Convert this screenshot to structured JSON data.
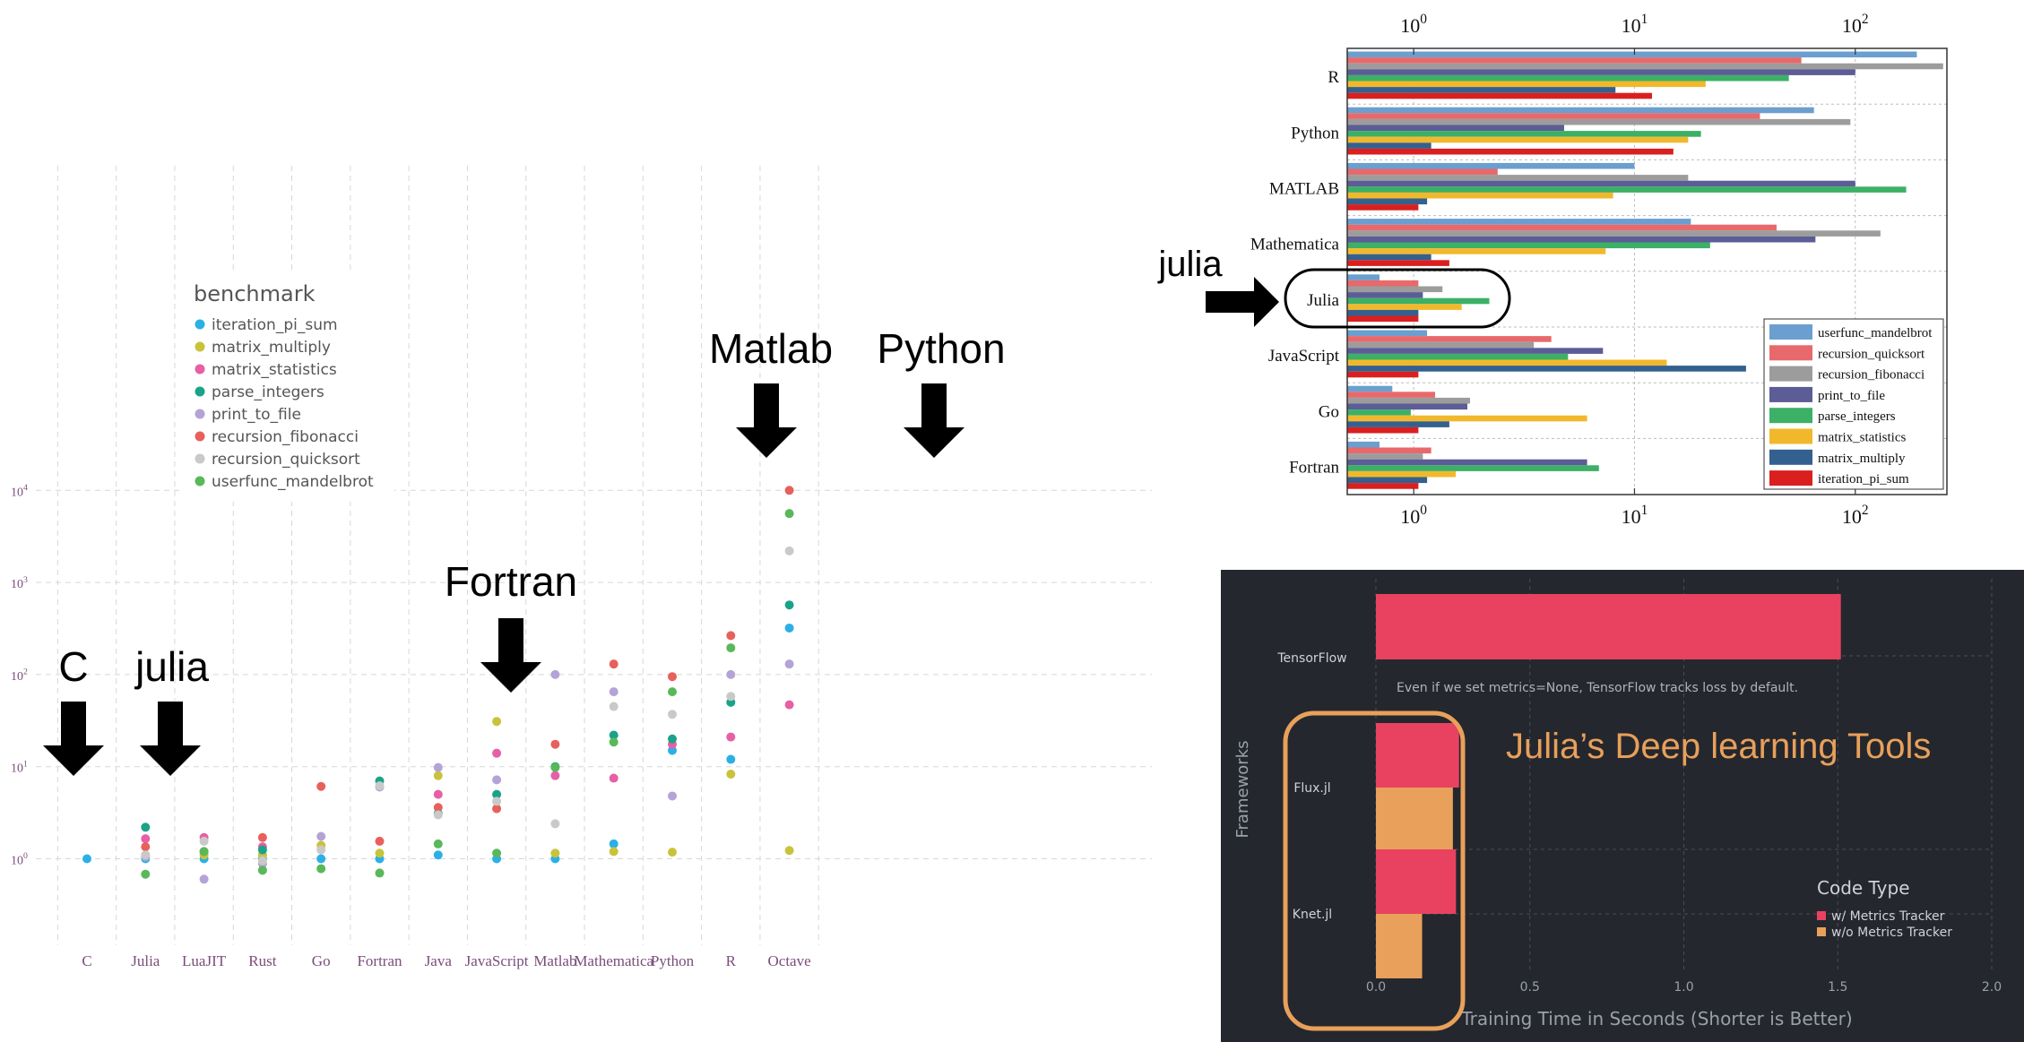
{
  "left_chart": {
    "legend_title": "benchmark",
    "legend": [
      {
        "name": "iteration_pi_sum",
        "color": "#2bb0e6"
      },
      {
        "name": "matrix_multiply",
        "color": "#c8c33a"
      },
      {
        "name": "matrix_statistics",
        "color": "#e75fa5"
      },
      {
        "name": "parse_integers",
        "color": "#1aa388"
      },
      {
        "name": "print_to_file",
        "color": "#b4a3d6"
      },
      {
        "name": "recursion_fibonacci",
        "color": "#e8605c"
      },
      {
        "name": "recursion_quicksort",
        "color": "#c9c9c9"
      },
      {
        "name": "userfunc_mandelbrot",
        "color": "#59b85a"
      }
    ],
    "y_ticks": [
      {
        "base": "10",
        "exp": "0",
        "v": 1
      },
      {
        "base": "10",
        "exp": "1",
        "v": 10
      },
      {
        "base": "10",
        "exp": "2",
        "v": 100
      },
      {
        "base": "10",
        "exp": "3",
        "v": 1000
      },
      {
        "base": "10",
        "exp": "4",
        "v": 10000
      }
    ]
  },
  "chart_data": [
    {
      "type": "scatter",
      "yscale": "log",
      "ylim": [
        0.45,
        20000
      ],
      "categories": [
        "C",
        "Julia",
        "LuaJIT",
        "Rust",
        "Go",
        "Fortran",
        "Java",
        "JavaScript",
        "Matlab",
        "Mathematica",
        "Python",
        "R",
        "Octave"
      ],
      "series": [
        {
          "name": "iteration_pi_sum",
          "values": [
            1,
            1.0,
            1.0,
            1.0,
            1.0,
            1.0,
            1.1,
            1.0,
            1.0,
            1.45,
            15,
            12,
            320
          ]
        },
        {
          "name": "matrix_multiply",
          "values": [
            null,
            1.1,
            1.1,
            1.1,
            1.4,
            1.15,
            8,
            31,
            1.15,
            1.2,
            1.18,
            8.3,
            1.23
          ]
        },
        {
          "name": "matrix_statistics",
          "values": [
            null,
            1.65,
            1.7,
            1.35,
            null,
            null,
            5,
            14,
            8,
            7.5,
            17.5,
            21,
            47
          ]
        },
        {
          "name": "parse_integers",
          "values": [
            null,
            2.2,
            null,
            1.25,
            null,
            7,
            3.1,
            5,
            10,
            22,
            20,
            50,
            570
          ]
        },
        {
          "name": "print_to_file",
          "values": [
            null,
            1.05,
            0.6,
            0.88,
            1.75,
            6,
            9.8,
            7.2,
            100,
            65,
            4.8,
            100,
            130
          ]
        },
        {
          "name": "recursion_fibonacci",
          "values": [
            null,
            1.35,
            1.2,
            1.7,
            6.1,
            1.55,
            3.6,
            3.5,
            17.5,
            130,
            95,
            265,
            10000
          ]
        },
        {
          "name": "recursion_quicksort",
          "values": [
            null,
            1.1,
            1.55,
            0.95,
            1.25,
            6.2,
            3,
            4.2,
            2.4,
            45,
            37,
            58,
            2200
          ]
        },
        {
          "name": "userfunc_mandelbrot",
          "values": [
            null,
            0.68,
            1.2,
            0.75,
            0.78,
            0.7,
            1.45,
            1.15,
            9.8,
            18.5,
            65,
            195,
            5600
          ]
        }
      ]
    },
    {
      "type": "bar",
      "orientation": "horizontal",
      "xscale": "log",
      "xlim": [
        0.5,
        260
      ],
      "x_ticks": [
        {
          "base": "10",
          "exp": "0",
          "v": 1
        },
        {
          "base": "10",
          "exp": "1",
          "v": 10
        },
        {
          "base": "10",
          "exp": "2",
          "v": 100
        }
      ],
      "categories": [
        "R",
        "Python",
        "MATLAB",
        "Mathematica",
        "Julia",
        "JavaScript",
        "Go",
        "Fortran"
      ],
      "legend_position": "bottom-right",
      "series": [
        {
          "name": "userfunc_mandelbrot",
          "color": "#6b9fcf",
          "values": [
            190,
            65,
            10,
            18,
            0.7,
            1.15,
            0.8,
            0.7
          ]
        },
        {
          "name": "recursion_quicksort",
          "color": "#e8696b",
          "values": [
            57,
            37,
            2.4,
            44,
            1.05,
            4.2,
            1.25,
            1.2
          ]
        },
        {
          "name": "recursion_fibonacci",
          "color": "#9c9c9c",
          "values": [
            250,
            95,
            17.5,
            130,
            1.35,
            3.5,
            1.8,
            1.1
          ]
        },
        {
          "name": "print_to_file",
          "color": "#5c5c96",
          "values": [
            100,
            4.8,
            100,
            66,
            1.1,
            7.2,
            1.75,
            6.1
          ]
        },
        {
          "name": "parse_integers",
          "color": "#3cb066",
          "values": [
            50,
            20,
            170,
            22,
            2.2,
            5,
            0.97,
            6.9
          ]
        },
        {
          "name": "matrix_statistics",
          "color": "#f2b82c",
          "values": [
            21,
            17.5,
            8,
            7.4,
            1.65,
            14,
            6.1,
            1.55
          ]
        },
        {
          "name": "matrix_multiply",
          "color": "#33608f",
          "values": [
            8.2,
            1.2,
            1.15,
            1.2,
            1.05,
            32,
            1.45,
            1.15
          ]
        },
        {
          "name": "iteration_pi_sum",
          "color": "#d9201f",
          "values": [
            12,
            15,
            1.05,
            1.45,
            1.05,
            1.05,
            1.05,
            1.05
          ]
        }
      ]
    },
    {
      "type": "bar",
      "orientation": "horizontal",
      "xlim": [
        0,
        2.0
      ],
      "x_ticks": [
        "0.0",
        "0.5",
        "1.0",
        "1.5",
        "2.0"
      ],
      "xlabel": "Training Time in Seconds (Shorter is Better)",
      "ylabel": "Frameworks",
      "legend_title": "Code Type",
      "legend": [
        {
          "name": "w/ Metrics Tracker",
          "color": "#e84260"
        },
        {
          "name": "w/o Metrics Tracker",
          "color": "#e8a05a"
        }
      ],
      "groups": [
        {
          "label": "TensorFlow",
          "bars": [
            {
              "series": "w/ Metrics Tracker",
              "value": 1.51
            }
          ]
        },
        {
          "label": "Flux.jl",
          "bars": [
            {
              "series": "w/ Metrics Tracker",
              "value": 0.27
            },
            {
              "series": "w/o Metrics Tracker",
              "value": 0.25
            }
          ]
        },
        {
          "label": "Knet.jl",
          "bars": [
            {
              "series": "w/ Metrics Tracker",
              "value": 0.26
            },
            {
              "series": "w/o Metrics Tracker",
              "value": 0.15
            }
          ]
        }
      ],
      "annotation": "Even if we set metrics=None, TensorFlow tracks loss by default."
    }
  ],
  "annotations": {
    "left": [
      "C",
      "julia",
      "Fortran",
      "Matlab",
      "Python"
    ],
    "right_top": "julia",
    "right_bottom": "Julia’s Deep learning Tools"
  }
}
